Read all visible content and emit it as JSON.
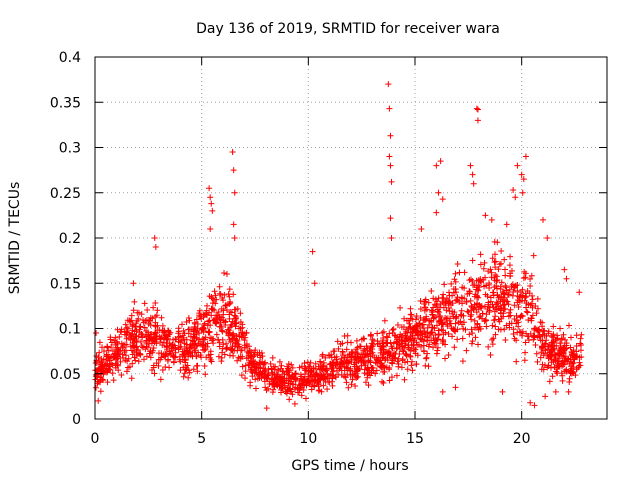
{
  "chart_data": {
    "type": "scatter",
    "title": "Day 136 of 2019, SRMTID for receiver wara",
    "xlabel": "GPS time / hours",
    "ylabel": "SRMTID / TECUs",
    "xlim": [
      0,
      24
    ],
    "ylim": [
      0,
      0.4
    ],
    "x_ticks": [
      0,
      5,
      10,
      15,
      20
    ],
    "y_ticks": [
      0,
      0.05,
      0.1,
      0.15,
      0.2,
      0.25,
      0.3,
      0.35,
      0.4
    ],
    "x_tick_labels": [
      "0",
      "5",
      "10",
      "15",
      "20"
    ],
    "y_tick_labels": [
      "0",
      "0.05",
      "0.1",
      "0.15",
      "0.2",
      "0.25",
      "0.3",
      "0.35",
      "0.4"
    ],
    "grid": true,
    "marker": "+",
    "color": "#ff0000",
    "data_extent": [
      0,
      22.8
    ],
    "background_trend": [
      [
        0.0,
        0.055
      ],
      [
        1.0,
        0.07
      ],
      [
        2.0,
        0.09
      ],
      [
        3.0,
        0.085
      ],
      [
        4.0,
        0.075
      ],
      [
        5.0,
        0.09
      ],
      [
        5.5,
        0.11
      ],
      [
        6.5,
        0.1
      ],
      [
        7.5,
        0.055
      ],
      [
        8.5,
        0.045
      ],
      [
        9.5,
        0.042
      ],
      [
        10.5,
        0.05
      ],
      [
        11.5,
        0.06
      ],
      [
        12.5,
        0.065
      ],
      [
        13.5,
        0.07
      ],
      [
        14.5,
        0.085
      ],
      [
        15.5,
        0.1
      ],
      [
        16.5,
        0.115
      ],
      [
        17.5,
        0.125
      ],
      [
        18.5,
        0.135
      ],
      [
        19.5,
        0.13
      ],
      [
        20.5,
        0.12
      ],
      [
        21.0,
        0.08
      ],
      [
        22.0,
        0.065
      ],
      [
        22.8,
        0.07
      ]
    ],
    "points": [
      [
        0.05,
        0.095
      ],
      [
        0.15,
        0.02
      ],
      [
        1.8,
        0.15
      ],
      [
        2.8,
        0.2
      ],
      [
        2.85,
        0.19
      ],
      [
        5.35,
        0.255
      ],
      [
        5.4,
        0.245
      ],
      [
        5.45,
        0.238
      ],
      [
        5.5,
        0.23
      ],
      [
        5.4,
        0.21
      ],
      [
        6.45,
        0.295
      ],
      [
        6.5,
        0.275
      ],
      [
        6.55,
        0.25
      ],
      [
        6.5,
        0.215
      ],
      [
        6.55,
        0.2
      ],
      [
        8.05,
        0.012
      ],
      [
        10.2,
        0.185
      ],
      [
        10.3,
        0.15
      ],
      [
        13.75,
        0.37
      ],
      [
        13.8,
        0.343
      ],
      [
        13.85,
        0.313
      ],
      [
        13.8,
        0.29
      ],
      [
        13.85,
        0.28
      ],
      [
        13.9,
        0.262
      ],
      [
        13.85,
        0.222
      ],
      [
        13.9,
        0.2
      ],
      [
        16.0,
        0.28
      ],
      [
        16.2,
        0.285
      ],
      [
        16.1,
        0.25
      ],
      [
        16.3,
        0.243
      ],
      [
        16.0,
        0.228
      ],
      [
        17.6,
        0.28
      ],
      [
        17.7,
        0.27
      ],
      [
        17.75,
        0.26
      ],
      [
        17.9,
        0.343
      ],
      [
        17.95,
        0.342
      ],
      [
        17.95,
        0.33
      ],
      [
        19.6,
        0.253
      ],
      [
        19.7,
        0.245
      ],
      [
        19.8,
        0.28
      ],
      [
        20.0,
        0.27
      ],
      [
        20.1,
        0.265
      ],
      [
        20.2,
        0.29
      ],
      [
        20.05,
        0.25
      ],
      [
        18.3,
        0.225
      ],
      [
        18.6,
        0.22
      ],
      [
        19.3,
        0.215
      ],
      [
        15.3,
        0.21
      ],
      [
        21.0,
        0.22
      ],
      [
        21.2,
        0.2
      ],
      [
        22.0,
        0.165
      ],
      [
        22.1,
        0.155
      ],
      [
        22.7,
        0.14
      ],
      [
        20.4,
        0.018
      ],
      [
        20.6,
        0.015
      ],
      [
        21.1,
        0.025
      ],
      [
        21.6,
        0.03
      ],
      [
        22.2,
        0.03
      ],
      [
        16.3,
        0.03
      ],
      [
        16.9,
        0.035
      ],
      [
        19.1,
        0.03
      ]
    ]
  }
}
